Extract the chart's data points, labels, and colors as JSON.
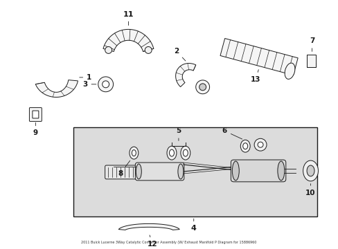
{
  "title": "2011 Buick Lucerne 3Way Catalytic Convertor Assembly (W/ Exhaust Manifold P Diagram for 15886960",
  "bg": "#ffffff",
  "box_bg": "#e0e0e0",
  "lc": "#1a1a1a",
  "figsize": [
    4.89,
    3.6
  ],
  "dpi": 100
}
